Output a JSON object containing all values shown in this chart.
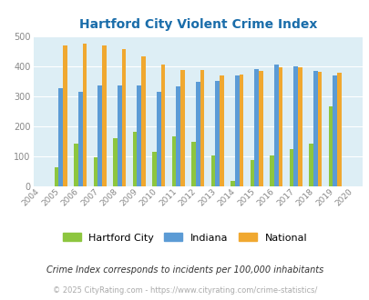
{
  "title": "Hartford City Violent Crime Index",
  "years": [
    2004,
    2005,
    2006,
    2007,
    2008,
    2009,
    2010,
    2011,
    2012,
    2013,
    2014,
    2015,
    2016,
    2017,
    2018,
    2019,
    2020
  ],
  "hartford_city": [
    null,
    62,
    140,
    97,
    160,
    180,
    115,
    165,
    148,
    103,
    18,
    88,
    103,
    123,
    142,
    265,
    null
  ],
  "indiana": [
    null,
    326,
    315,
    336,
    336,
    336,
    315,
    331,
    346,
    351,
    367,
    389,
    406,
    400,
    384,
    369,
    null
  ],
  "national": [
    null,
    470,
    474,
    467,
    455,
    432,
    406,
    388,
    388,
    368,
    372,
    383,
    397,
    396,
    382,
    379,
    null
  ],
  "ylim": [
    0,
    500
  ],
  "yticks": [
    0,
    100,
    200,
    300,
    400,
    500
  ],
  "bar_width": 0.22,
  "color_hartford": "#8dc63f",
  "color_indiana": "#5b9bd5",
  "color_national": "#f0a830",
  "plot_bg": "#ddeef5",
  "title_color": "#1a6daa",
  "footnote1": "Crime Index corresponds to incidents per 100,000 inhabitants",
  "footnote2": "© 2025 CityRating.com - https://www.cityrating.com/crime-statistics/",
  "legend_labels": [
    "Hartford City",
    "Indiana",
    "National"
  ]
}
